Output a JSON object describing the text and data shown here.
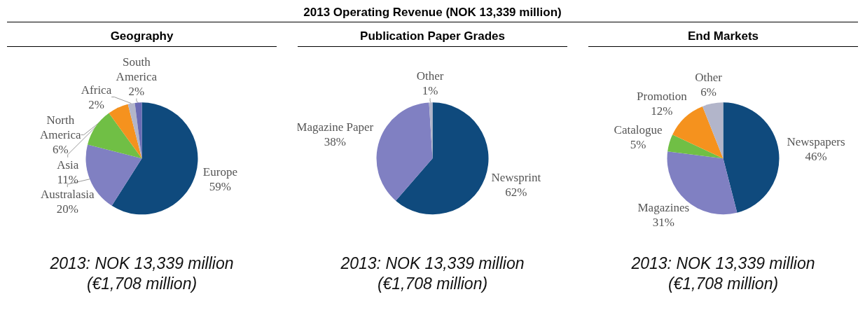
{
  "chart_data": [
    {
      "type": "other",
      "title": "2013 Operating Revenue (NOK 13,339 million)"
    },
    {
      "type": "pie",
      "title": "Geography",
      "categories": [
        "Europe",
        "Australasia",
        "Asia",
        "North America",
        "Africa",
        "South America"
      ],
      "values": [
        59,
        20,
        11,
        6,
        2,
        2
      ],
      "value_labels": [
        "59%",
        "20%",
        "11%",
        "6%",
        "2%",
        "2%"
      ],
      "colors": [
        "#0f4a7d",
        "#8080c2",
        "#70bf45",
        "#f5921e",
        "#b2b5ca",
        "#6a6ab4"
      ],
      "annotations": [
        "2013: NOK 13,339 million",
        "(€1,708 million)"
      ]
    },
    {
      "type": "pie",
      "title": "Publication Paper Grades",
      "categories": [
        "Newsprint",
        "Magazine Paper",
        "Other"
      ],
      "values": [
        62,
        38,
        1
      ],
      "value_labels": [
        "62%",
        "38%",
        "1%"
      ],
      "colors": [
        "#0f4a7d",
        "#8080c2",
        "#b2b5ca"
      ],
      "annotations": [
        "2013: NOK 13,339 million",
        "(€1,708 million)"
      ]
    },
    {
      "type": "pie",
      "title": "End Markets",
      "categories": [
        "Newspapers",
        "Magazines",
        "Catalogue",
        "Promotion",
        "Other"
      ],
      "values": [
        46,
        31,
        5,
        12,
        6
      ],
      "value_labels": [
        "46%",
        "31%",
        "5%",
        "12%",
        "6%"
      ],
      "colors": [
        "#0f4a7d",
        "#8080c2",
        "#70bf45",
        "#f5921e",
        "#b2b5ca"
      ],
      "annotations": [
        "2013: NOK 13,339 million",
        "(€1,708 million)"
      ]
    }
  ]
}
